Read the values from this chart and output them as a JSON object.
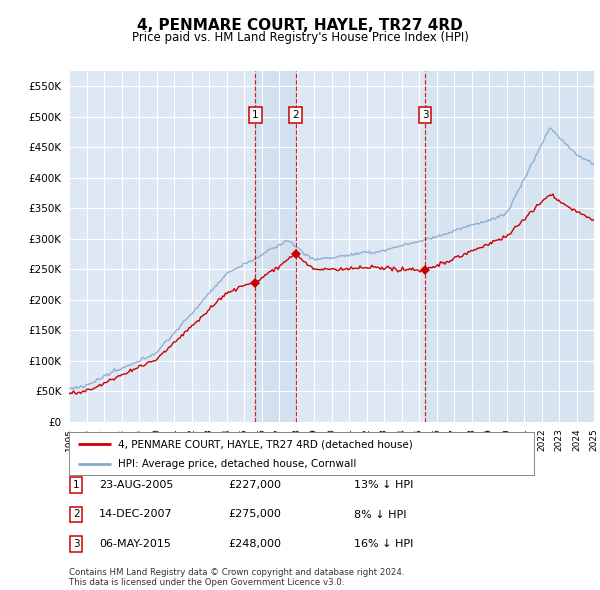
{
  "title": "4, PENMARE COURT, HAYLE, TR27 4RD",
  "subtitle": "Price paid vs. HM Land Registry's House Price Index (HPI)",
  "ylim": [
    0,
    575000
  ],
  "ytick_values": [
    0,
    50000,
    100000,
    150000,
    200000,
    250000,
    300000,
    350000,
    400000,
    450000,
    500000,
    550000
  ],
  "x_start_year": 1995,
  "x_end_year": 2025,
  "sale_events": [
    {
      "date_label": "23-AUG-2005",
      "date_num": 2005.65,
      "price": 227000,
      "pct": "13%",
      "label": "1"
    },
    {
      "date_label": "14-DEC-2007",
      "date_num": 2007.95,
      "price": 275000,
      "pct": "8%",
      "label": "2"
    },
    {
      "date_label": "06-MAY-2015",
      "date_num": 2015.35,
      "price": 248000,
      "pct": "16%",
      "label": "3"
    }
  ],
  "legend_line1": "4, PENMARE COURT, HAYLE, TR27 4RD (detached house)",
  "legend_line2": "HPI: Average price, detached house, Cornwall",
  "footnote": "Contains HM Land Registry data © Crown copyright and database right 2024.\nThis data is licensed under the Open Government Licence v3.0.",
  "line_color_red": "#cc0000",
  "line_color_blue": "#88aacc",
  "background_plot": "#dde8f4",
  "shade_between_color": "#ccdcee",
  "sale_box_color": "#cc0000",
  "grid_color": "#ffffff",
  "table_rows": [
    [
      "1",
      "23-AUG-2005",
      "£227,000",
      "13% ↓ HPI"
    ],
    [
      "2",
      "14-DEC-2007",
      "£275,000",
      "8% ↓ HPI"
    ],
    [
      "3",
      "06-MAY-2015",
      "£248,000",
      "16% ↓ HPI"
    ]
  ]
}
